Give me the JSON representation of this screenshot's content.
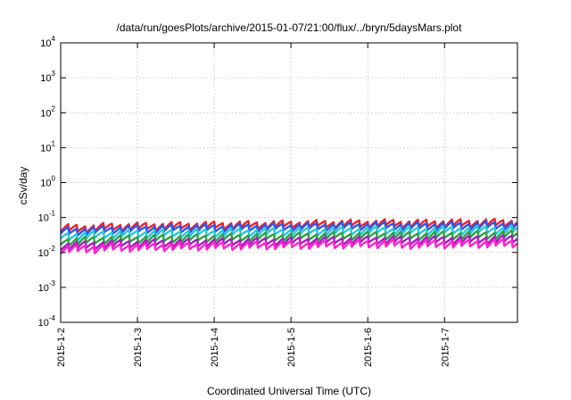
{
  "chart_data": {
    "type": "line",
    "title": "/data/run/goesPlots/archive/2015-01-07/21:00/flux/../bryn/5daysMars.plot",
    "xlabel": "Coordinated Universal Time (UTC)",
    "ylabel": "cSv/day",
    "yscale": "log",
    "ylim": [
      0.0001,
      10000
    ],
    "xlim_days": [
      0,
      5.95
    ],
    "grid": true,
    "x_tick_labels": [
      "2015-1-2",
      "2015-1-3",
      "2015-1-4",
      "2015-1-5",
      "2015-1-6",
      "2015-1-7"
    ],
    "y_ticks": [
      {
        "base": "10",
        "exp": "4"
      },
      {
        "base": "10",
        "exp": "3"
      },
      {
        "base": "10",
        "exp": "2"
      },
      {
        "base": "10",
        "exp": "1"
      },
      {
        "base": "10",
        "exp": "0"
      },
      {
        "base": "10",
        "exp": "-1"
      },
      {
        "base": "10",
        "exp": "-2"
      },
      {
        "base": "10",
        "exp": "-3"
      },
      {
        "base": "10",
        "exp": "-4"
      }
    ],
    "series_pattern": "sawtooth",
    "sawtooth_peaks_per_day": 9,
    "series": [
      {
        "color": "#e8242c",
        "level_day0": 0.062,
        "level_day5": 0.092
      },
      {
        "color": "#2b57e8",
        "level_day0": 0.052,
        "level_day5": 0.078
      },
      {
        "color": "#29c7d9",
        "level_day0": 0.038,
        "level_day5": 0.058
      },
      {
        "color": "#2ea043",
        "level_day0": 0.027,
        "level_day5": 0.042
      },
      {
        "color": "#a020c0",
        "level_day0": 0.02,
        "level_day5": 0.031
      },
      {
        "color": "#ff22cc",
        "level_day0": 0.016,
        "level_day5": 0.024
      }
    ]
  }
}
